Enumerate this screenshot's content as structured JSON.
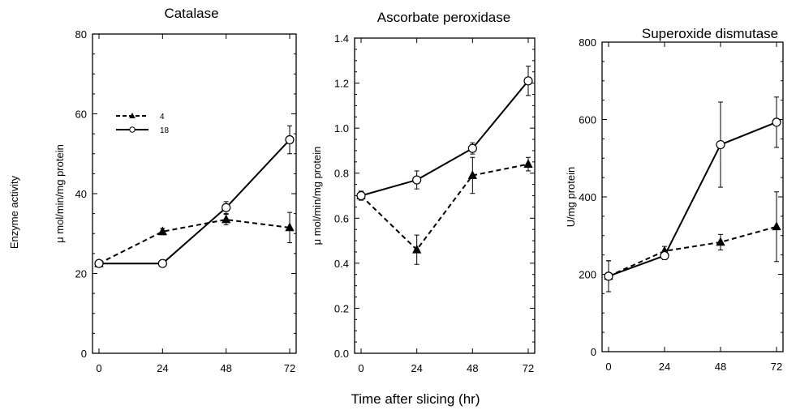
{
  "figure": {
    "shared_ylabel": "Enzyme activity",
    "shared_xlabel": "Time after slicing (hr)"
  },
  "chart_data": [
    {
      "type": "line",
      "title": "Catalase",
      "xlabel": "",
      "ylabel": "μ mol/min/mg protein",
      "x": [
        0,
        24,
        48,
        72
      ],
      "xticks": [
        0,
        24,
        48,
        72
      ],
      "xlim": [
        0,
        72
      ],
      "ylim": [
        0,
        80
      ],
      "yticks": [
        0,
        20,
        40,
        60,
        80
      ],
      "ytick_labels": [
        "0",
        "20",
        "40",
        "60",
        "80"
      ],
      "grid": false,
      "legend": "top-left",
      "series": [
        {
          "name": "4",
          "style": "dashed",
          "marker": "filled-triangle",
          "values": [
            22.5,
            30.5,
            33.5,
            31.5
          ],
          "errors": [
            0.5,
            0.8,
            1.3,
            3.8
          ]
        },
        {
          "name": "18",
          "style": "solid",
          "marker": "open-circle",
          "values": [
            22.5,
            22.5,
            36.5,
            53.5
          ],
          "errors": [
            0.5,
            0.5,
            1.5,
            3.5
          ]
        }
      ]
    },
    {
      "type": "line",
      "title": "Ascorbate peroxidase",
      "xlabel": "",
      "ylabel": "μ mol/min/mg protein",
      "x": [
        0,
        24,
        48,
        72
      ],
      "xticks": [
        0,
        24,
        48,
        72
      ],
      "xlim": [
        0,
        72
      ],
      "ylim": [
        0,
        1.4
      ],
      "yticks": [
        0,
        0.2,
        0.4,
        0.6,
        0.8,
        1.0,
        1.2,
        1.4
      ],
      "ytick_labels": [
        "0.0",
        "0.2",
        "0.4",
        "0.6",
        "0.8",
        "1.0",
        "1.2",
        "1.4"
      ],
      "grid": false,
      "series": [
        {
          "name": "4",
          "style": "dashed",
          "marker": "filled-triangle",
          "values": [
            0.7,
            0.46,
            0.79,
            0.84
          ],
          "errors": [
            0.02,
            0.065,
            0.08,
            0.03
          ]
        },
        {
          "name": "18",
          "style": "solid",
          "marker": "open-circle",
          "values": [
            0.7,
            0.77,
            0.91,
            1.21
          ],
          "errors": [
            0.02,
            0.04,
            0.025,
            0.065
          ]
        }
      ]
    },
    {
      "type": "line",
      "title": "Superoxide dismutase",
      "xlabel": "",
      "ylabel": "U/mg protein",
      "x": [
        0,
        24,
        48,
        72
      ],
      "xticks": [
        0,
        24,
        48,
        72
      ],
      "xlim": [
        0,
        72
      ],
      "ylim": [
        0,
        800
      ],
      "yticks": [
        0,
        200,
        400,
        600,
        800
      ],
      "ytick_labels": [
        "0",
        "200",
        "400",
        "600",
        "800"
      ],
      "grid": false,
      "series": [
        {
          "name": "4",
          "style": "dashed",
          "marker": "filled-triangle",
          "values": [
            195,
            260,
            283,
            323
          ],
          "errors": [
            40,
            12,
            20,
            90
          ]
        },
        {
          "name": "18",
          "style": "solid",
          "marker": "open-circle",
          "values": [
            195,
            248,
            535,
            593
          ],
          "errors": [
            40,
            10,
            110,
            65
          ]
        }
      ]
    }
  ]
}
